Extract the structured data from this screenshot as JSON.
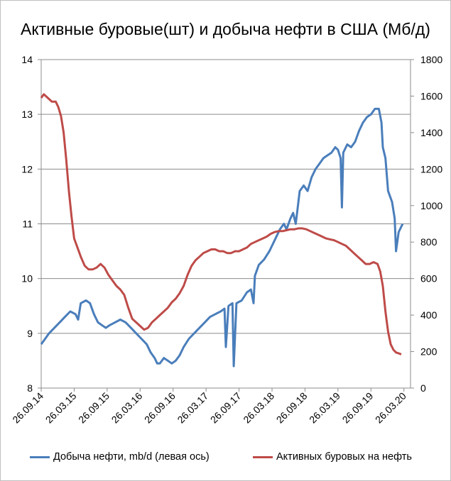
{
  "chart_data": {
    "type": "line",
    "title": "Активные буровые(шт) и добыча нефти в США (Мб/д)",
    "x_ticks": [
      "26.09.14",
      "26.03.15",
      "26.09.15",
      "26.03.16",
      "26.09.16",
      "26.03.17",
      "26.09.17",
      "26.03.18",
      "26.09.18",
      "26.03.19",
      "26.09.19",
      "26.03.20"
    ],
    "y_left_ticks": [
      "8",
      "9",
      "10",
      "11",
      "12",
      "13",
      "14"
    ],
    "y_right_ticks": [
      "0",
      "200",
      "400",
      "600",
      "800",
      "1000",
      "1200",
      "1400",
      "1600",
      "1800"
    ],
    "ylim_left": [
      8,
      14
    ],
    "ylim_right": [
      0,
      1800
    ],
    "grid": "horizontal",
    "legend_position": "bottom",
    "series": [
      {
        "name": "Добыча нефти, mb/d (левая ось)",
        "axis": "left",
        "color": "#4a7ebb",
        "points": [
          [
            0.0,
            8.8
          ],
          [
            0.3,
            8.9
          ],
          [
            0.6,
            9.0
          ],
          [
            1.0,
            9.1
          ],
          [
            1.4,
            9.2
          ],
          [
            1.8,
            9.3
          ],
          [
            2.2,
            9.4
          ],
          [
            2.6,
            9.35
          ],
          [
            2.8,
            9.25
          ],
          [
            3.0,
            9.55
          ],
          [
            3.4,
            9.6
          ],
          [
            3.7,
            9.55
          ],
          [
            4.0,
            9.35
          ],
          [
            4.3,
            9.2
          ],
          [
            4.6,
            9.15
          ],
          [
            4.9,
            9.1
          ],
          [
            5.2,
            9.15
          ],
          [
            5.6,
            9.2
          ],
          [
            6.0,
            9.25
          ],
          [
            6.4,
            9.2
          ],
          [
            6.8,
            9.1
          ],
          [
            7.2,
            9.0
          ],
          [
            7.6,
            8.9
          ],
          [
            8.0,
            8.8
          ],
          [
            8.3,
            8.65
          ],
          [
            8.6,
            8.55
          ],
          [
            8.8,
            8.45
          ],
          [
            9.0,
            8.45
          ],
          [
            9.3,
            8.55
          ],
          [
            9.6,
            8.5
          ],
          [
            9.9,
            8.45
          ],
          [
            10.2,
            8.5
          ],
          [
            10.5,
            8.6
          ],
          [
            10.8,
            8.75
          ],
          [
            11.2,
            8.9
          ],
          [
            11.6,
            9.0
          ],
          [
            12.0,
            9.1
          ],
          [
            12.4,
            9.2
          ],
          [
            12.8,
            9.3
          ],
          [
            13.2,
            9.35
          ],
          [
            13.6,
            9.4
          ],
          [
            13.9,
            9.45
          ],
          [
            14.0,
            8.75
          ],
          [
            14.2,
            9.5
          ],
          [
            14.5,
            9.55
          ],
          [
            14.6,
            8.4
          ],
          [
            14.8,
            9.55
          ],
          [
            15.2,
            9.6
          ],
          [
            15.6,
            9.75
          ],
          [
            15.9,
            9.8
          ],
          [
            16.1,
            9.55
          ],
          [
            16.2,
            10.05
          ],
          [
            16.5,
            10.25
          ],
          [
            16.9,
            10.35
          ],
          [
            17.3,
            10.5
          ],
          [
            17.7,
            10.7
          ],
          [
            18.1,
            10.9
          ],
          [
            18.4,
            11.0
          ],
          [
            18.6,
            10.9
          ],
          [
            18.9,
            11.1
          ],
          [
            19.1,
            11.2
          ],
          [
            19.3,
            11.0
          ],
          [
            19.6,
            11.6
          ],
          [
            19.9,
            11.7
          ],
          [
            20.2,
            11.6
          ],
          [
            20.5,
            11.85
          ],
          [
            20.8,
            12.0
          ],
          [
            21.1,
            12.1
          ],
          [
            21.4,
            12.2
          ],
          [
            21.7,
            12.25
          ],
          [
            22.0,
            12.3
          ],
          [
            22.3,
            12.4
          ],
          [
            22.5,
            12.35
          ],
          [
            22.7,
            12.2
          ],
          [
            22.8,
            11.3
          ],
          [
            22.9,
            12.3
          ],
          [
            23.2,
            12.45
          ],
          [
            23.5,
            12.4
          ],
          [
            23.8,
            12.5
          ],
          [
            24.1,
            12.7
          ],
          [
            24.4,
            12.85
          ],
          [
            24.7,
            12.95
          ],
          [
            25.0,
            13.0
          ],
          [
            25.3,
            13.1
          ],
          [
            25.6,
            13.1
          ],
          [
            25.8,
            12.85
          ],
          [
            25.9,
            12.4
          ],
          [
            26.1,
            12.2
          ],
          [
            26.3,
            11.6
          ],
          [
            26.6,
            11.4
          ],
          [
            26.8,
            11.1
          ],
          [
            26.9,
            10.5
          ],
          [
            27.1,
            10.85
          ],
          [
            27.4,
            11.0
          ]
        ]
      },
      {
        "name": "Активных буровых на нефть",
        "axis": "right",
        "color": "#be4b48",
        "points": [
          [
            0.0,
            1590
          ],
          [
            0.2,
            1610
          ],
          [
            0.5,
            1590
          ],
          [
            0.8,
            1570
          ],
          [
            1.1,
            1570
          ],
          [
            1.3,
            1540
          ],
          [
            1.5,
            1490
          ],
          [
            1.7,
            1400
          ],
          [
            1.9,
            1250
          ],
          [
            2.1,
            1080
          ],
          [
            2.3,
            940
          ],
          [
            2.5,
            820
          ],
          [
            2.8,
            760
          ],
          [
            3.0,
            720
          ],
          [
            3.3,
            670
          ],
          [
            3.6,
            650
          ],
          [
            3.9,
            650
          ],
          [
            4.2,
            660
          ],
          [
            4.5,
            680
          ],
          [
            4.8,
            660
          ],
          [
            5.1,
            620
          ],
          [
            5.4,
            590
          ],
          [
            5.7,
            560
          ],
          [
            6.0,
            540
          ],
          [
            6.3,
            510
          ],
          [
            6.6,
            440
          ],
          [
            6.9,
            380
          ],
          [
            7.2,
            360
          ],
          [
            7.5,
            340
          ],
          [
            7.8,
            320
          ],
          [
            8.1,
            330
          ],
          [
            8.4,
            360
          ],
          [
            8.7,
            380
          ],
          [
            9.0,
            400
          ],
          [
            9.3,
            420
          ],
          [
            9.6,
            440
          ],
          [
            9.9,
            470
          ],
          [
            10.2,
            490
          ],
          [
            10.5,
            520
          ],
          [
            10.8,
            560
          ],
          [
            11.1,
            620
          ],
          [
            11.4,
            670
          ],
          [
            11.7,
            700
          ],
          [
            12.0,
            720
          ],
          [
            12.3,
            740
          ],
          [
            12.6,
            750
          ],
          [
            12.9,
            760
          ],
          [
            13.2,
            760
          ],
          [
            13.5,
            750
          ],
          [
            13.8,
            750
          ],
          [
            14.1,
            740
          ],
          [
            14.4,
            740
          ],
          [
            14.7,
            750
          ],
          [
            15.0,
            750
          ],
          [
            15.3,
            760
          ],
          [
            15.6,
            770
          ],
          [
            15.9,
            790
          ],
          [
            16.2,
            800
          ],
          [
            16.5,
            810
          ],
          [
            16.8,
            820
          ],
          [
            17.1,
            830
          ],
          [
            17.4,
            845
          ],
          [
            17.7,
            855
          ],
          [
            18.0,
            860
          ],
          [
            18.3,
            860
          ],
          [
            18.6,
            865
          ],
          [
            18.9,
            870
          ],
          [
            19.2,
            870
          ],
          [
            19.5,
            875
          ],
          [
            19.8,
            875
          ],
          [
            20.1,
            870
          ],
          [
            20.4,
            860
          ],
          [
            20.7,
            850
          ],
          [
            21.0,
            840
          ],
          [
            21.3,
            830
          ],
          [
            21.6,
            820
          ],
          [
            21.9,
            815
          ],
          [
            22.2,
            810
          ],
          [
            22.5,
            800
          ],
          [
            22.8,
            790
          ],
          [
            23.1,
            780
          ],
          [
            23.4,
            760
          ],
          [
            23.7,
            740
          ],
          [
            24.0,
            720
          ],
          [
            24.3,
            700
          ],
          [
            24.6,
            680
          ],
          [
            24.9,
            680
          ],
          [
            25.2,
            690
          ],
          [
            25.5,
            680
          ],
          [
            25.7,
            640
          ],
          [
            25.9,
            560
          ],
          [
            26.1,
            420
          ],
          [
            26.3,
            310
          ],
          [
            26.5,
            240
          ],
          [
            26.7,
            210
          ],
          [
            26.9,
            195
          ],
          [
            27.1,
            190
          ],
          [
            27.3,
            185
          ]
        ]
      }
    ]
  }
}
